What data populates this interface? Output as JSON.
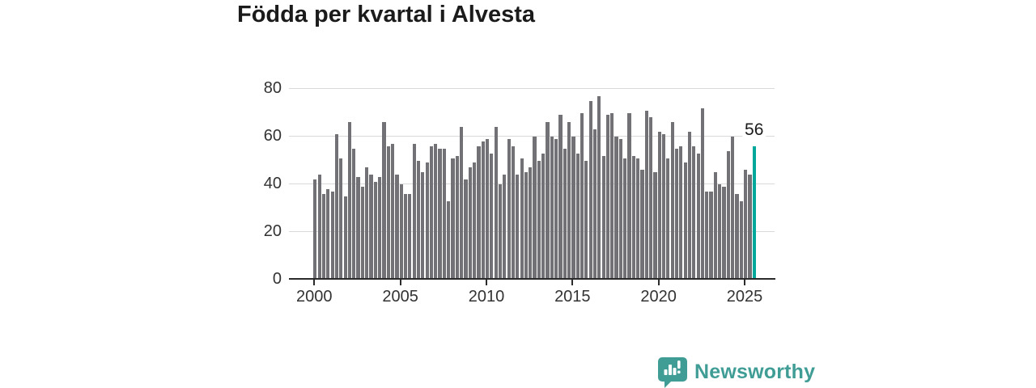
{
  "title": "Födda per kvartal i Alvesta",
  "chart_data": {
    "type": "bar",
    "title": "Födda per kvartal i Alvesta",
    "x_start": "2000 Q1",
    "x_end": "2025 Q3",
    "x_tick_labels": [
      "2000",
      "2005",
      "2010",
      "2015",
      "2020",
      "2025"
    ],
    "y_tick_labels": [
      "0",
      "20",
      "40",
      "60",
      "80"
    ],
    "y_tick_values": [
      0,
      20,
      40,
      60,
      80
    ],
    "ylim": [
      0,
      80
    ],
    "grid": true,
    "legend": "none",
    "bar_color": "#717176",
    "highlight": {
      "index": 102,
      "label": "56",
      "value": 56,
      "color": "#00a79b"
    },
    "values": [
      42,
      44,
      36,
      38,
      37,
      61,
      51,
      35,
      66,
      55,
      43,
      39,
      47,
      44,
      41,
      43,
      66,
      56,
      57,
      44,
      40,
      36,
      36,
      57,
      50,
      45,
      49,
      56,
      57,
      55,
      55,
      33,
      51,
      52,
      64,
      42,
      47,
      49,
      56,
      58,
      59,
      53,
      64,
      40,
      44,
      59,
      56,
      44,
      51,
      45,
      47,
      60,
      50,
      53,
      66,
      60,
      59,
      69,
      55,
      66,
      60,
      53,
      70,
      50,
      75,
      63,
      77,
      52,
      69,
      70,
      60,
      59,
      51,
      70,
      52,
      51,
      46,
      71,
      68,
      45,
      62,
      61,
      51,
      66,
      55,
      56,
      49,
      62,
      56,
      53,
      72,
      37,
      37,
      45,
      40,
      39,
      54,
      60,
      36,
      33,
      46,
      44,
      56
    ]
  },
  "branding": {
    "name": "Newsworthy",
    "color": "#3f9d96",
    "icon": "newsworthy-speech-bubble-chart-icon"
  }
}
